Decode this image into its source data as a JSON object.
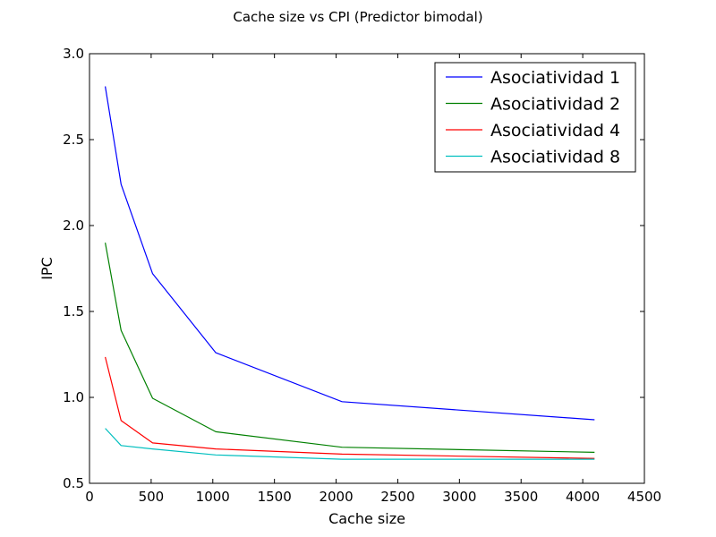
{
  "chart_data": {
    "type": "line",
    "title": "Cache size vs CPI (Predictor bimodal)",
    "xlabel": "Cache size",
    "ylabel": "IPC",
    "xlim": [
      0,
      4500
    ],
    "ylim": [
      0.5,
      3.0
    ],
    "xticks": [
      0,
      500,
      1000,
      1500,
      2000,
      2500,
      3000,
      3500,
      4000,
      4500
    ],
    "xtick_labels": [
      "0",
      "500",
      "1000",
      "1500",
      "2000",
      "2500",
      "3000",
      "3500",
      "4000",
      "4500"
    ],
    "yticks": [
      0.5,
      1.0,
      1.5,
      2.0,
      2.5,
      3.0
    ],
    "ytick_labels": [
      "0.5",
      "1.0",
      "1.5",
      "2.0",
      "2.5",
      "3.0"
    ],
    "grid": false,
    "legend_position": "top-right",
    "x": [
      128,
      256,
      512,
      1024,
      2048,
      4096
    ],
    "series": [
      {
        "name": "Asociatividad 1",
        "color": "#0000ff",
        "values": [
          2.81,
          2.24,
          1.72,
          1.26,
          0.975,
          0.87
        ]
      },
      {
        "name": "Asociatividad 2",
        "color": "#008000",
        "values": [
          1.9,
          1.39,
          0.995,
          0.8,
          0.71,
          0.68
        ]
      },
      {
        "name": "Asociatividad 4",
        "color": "#ff0000",
        "values": [
          1.235,
          0.865,
          0.735,
          0.7,
          0.67,
          0.645
        ]
      },
      {
        "name": "Asociatividad 8",
        "color": "#00bfbf",
        "values": [
          0.82,
          0.72,
          0.7,
          0.665,
          0.64,
          0.64
        ]
      }
    ]
  }
}
